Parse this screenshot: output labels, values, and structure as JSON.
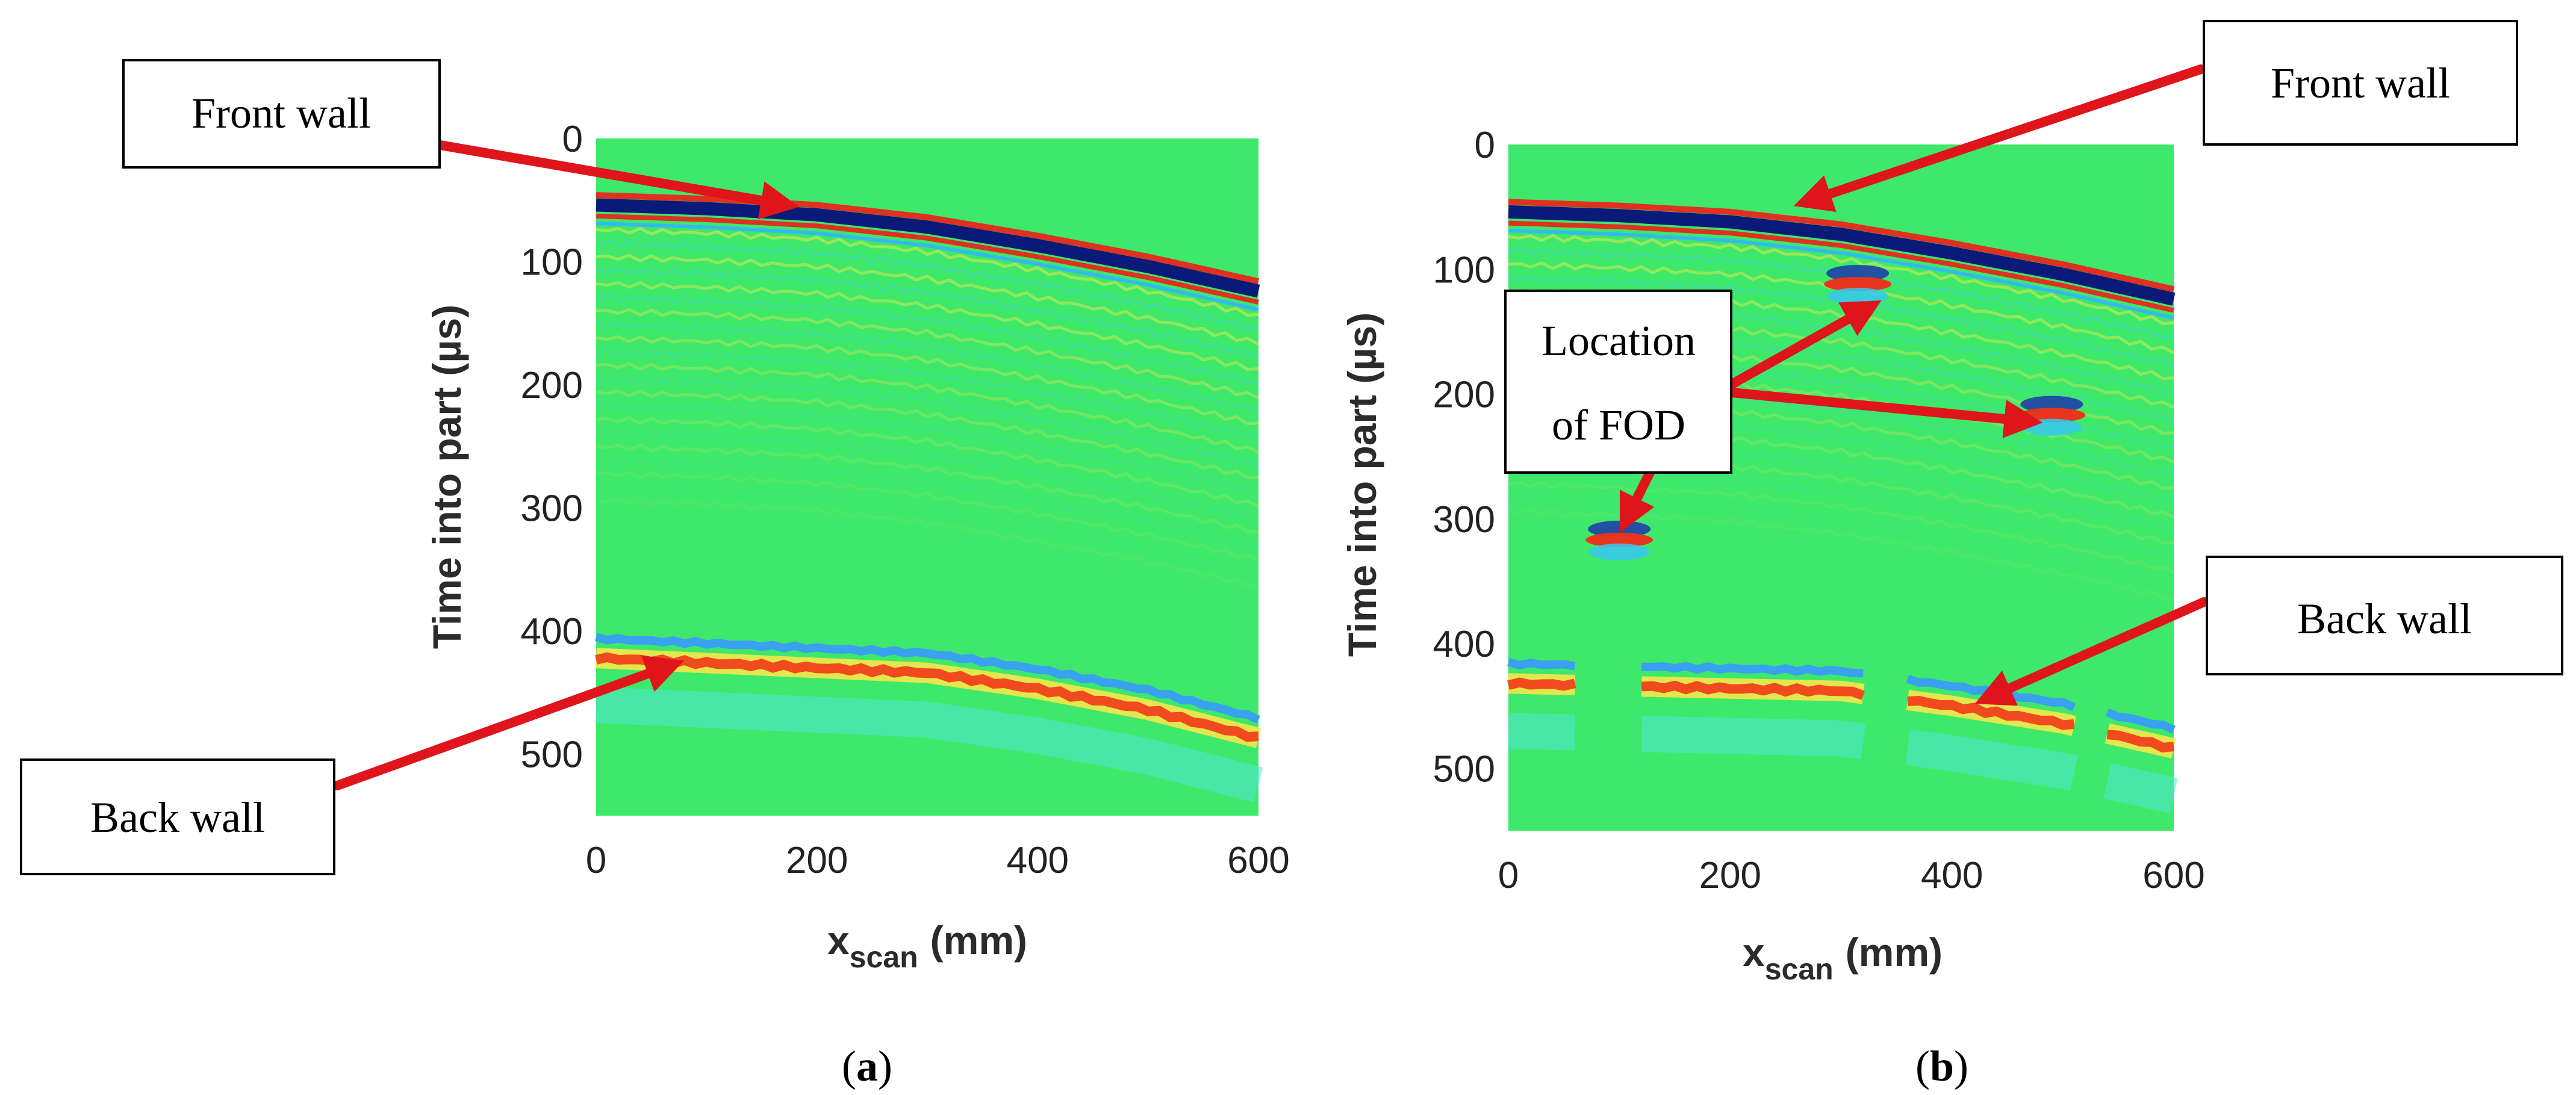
{
  "chart_data": [
    {
      "type": "heatmap",
      "panel": "a",
      "panel_label": "(a)",
      "xlabel": "x",
      "xlabel_sub": "scan",
      "xlabel_unit": "(mm)",
      "ylabel": "Time into part (µs)",
      "xlim": [
        0,
        600
      ],
      "ylim": [
        0,
        550
      ],
      "y_reversed": true,
      "xticks": [
        0,
        200,
        400,
        600
      ],
      "yticks": [
        0,
        100,
        200,
        300,
        400,
        500
      ],
      "colormap": "jet",
      "front_wall": {
        "x": [
          0,
          100,
          200,
          300,
          400,
          500,
          600
        ],
        "t": [
          52,
          55,
          60,
          70,
          85,
          102,
          122
        ]
      },
      "back_wall": {
        "x": [
          0,
          100,
          200,
          300,
          400,
          500,
          600
        ],
        "t": [
          420,
          424,
          428,
          432,
          445,
          462,
          485
        ]
      },
      "fod": [],
      "annotations": [
        {
          "text": "Front wall",
          "target": {
            "x": 170,
            "t": 55
          }
        },
        {
          "text": "Back wall",
          "target": {
            "x": 80,
            "t": 420
          }
        }
      ]
    },
    {
      "type": "heatmap",
      "panel": "b",
      "panel_label": "(b)",
      "xlabel": "x",
      "xlabel_sub": "scan",
      "xlabel_unit": "(mm)",
      "ylabel": "Time into part (µs)",
      "xlim": [
        0,
        600
      ],
      "ylim": [
        0,
        550
      ],
      "y_reversed": true,
      "xticks": [
        0,
        200,
        400,
        600
      ],
      "yticks": [
        0,
        100,
        200,
        300,
        400,
        500
      ],
      "colormap": "jet",
      "front_wall": {
        "x": [
          0,
          100,
          200,
          300,
          400,
          500,
          600
        ],
        "t": [
          52,
          55,
          60,
          70,
          85,
          102,
          122
        ]
      },
      "back_wall": {
        "x": [
          0,
          100,
          200,
          300,
          400,
          500,
          600
        ],
        "t": [
          430,
          432,
          434,
          436,
          448,
          462,
          482
        ]
      },
      "back_wall_gaps": [
        [
          60,
          120
        ],
        [
          320,
          360
        ],
        [
          510,
          535
        ]
      ],
      "fod": [
        {
          "x": 315,
          "t": 110
        },
        {
          "x": 490,
          "t": 215
        },
        {
          "x": 100,
          "t": 315
        }
      ],
      "annotations": [
        {
          "text": "Front wall",
          "target": {
            "x": 260,
            "t": 45
          }
        },
        {
          "text": "Location of FOD",
          "targets": [
            {
              "x": 315,
              "t": 130
            },
            {
              "x": 480,
              "t": 220
            },
            {
              "x": 110,
              "t": 300
            }
          ]
        },
        {
          "text": "Back wall",
          "target": {
            "x": 420,
            "t": 445
          }
        }
      ]
    }
  ],
  "callouts": {
    "front_wall_a": "Front wall",
    "back_wall_a": "Back wall",
    "front_wall_b": "Front wall",
    "fod_line1": "Location",
    "fod_line2": "of FOD",
    "back_wall_b": "Back wall"
  },
  "colors": {
    "background_field": "#3ee86a",
    "front_wall_core": "#0a1a78",
    "front_wall_edge": "#e03020",
    "back_wall_top": "#3aa0f0",
    "back_wall_mid": "#f04a1e",
    "back_wall_halo": "#f5e64a",
    "arrow": "#e0141b"
  }
}
